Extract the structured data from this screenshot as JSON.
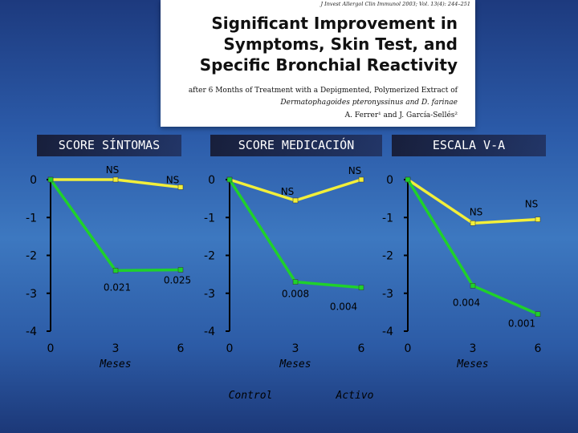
{
  "header": {
    "citation": "J Invest Allergol Clin Immunol 2003; Vol. 13(4): 244–251",
    "title_lines": [
      "Significant Improvement in",
      "Symptoms, Skin Test, and",
      "Specific Bronchial Reactivity"
    ],
    "subtitle_line1": "after 6 Months of Treatment with a Depigmented, Polymerized Extract of",
    "subtitle_line2": "Dermatophagoides pteronyssinus and D. farinae",
    "authors": "A. Ferrer¹ and J. García-Sellés²"
  },
  "colors": {
    "control": "#f2ef3a",
    "activo": "#1fd12b",
    "axis": "#000000"
  },
  "legend": {
    "control": "Control",
    "activo": "Activo"
  },
  "chart_data": [
    {
      "type": "line",
      "title": "SCORE SÍNTOMAS",
      "x": [
        0,
        3,
        6
      ],
      "x_tick_labels": [
        "0",
        "3",
        "6"
      ],
      "xlabel": "Meses",
      "y_ticks": [
        0,
        -1,
        -2,
        -3,
        -4
      ],
      "y_tick_labels": [
        "0",
        "-1",
        "-2",
        "-3",
        "-4"
      ],
      "ylim": [
        -4,
        0
      ],
      "series": [
        {
          "name": "Control",
          "values": [
            0,
            0,
            -0.2
          ],
          "point_labels": [
            "",
            "NS",
            "NS"
          ]
        },
        {
          "name": "Activo",
          "values": [
            0,
            -2.4,
            -2.38
          ],
          "point_labels": [
            "",
            "0.021",
            "0.025"
          ]
        }
      ]
    },
    {
      "type": "line",
      "title": "SCORE MEDICACIÓN",
      "x": [
        0,
        3,
        6
      ],
      "x_tick_labels": [
        "0",
        "3",
        "6"
      ],
      "xlabel": "Meses",
      "y_ticks": [
        0,
        -1,
        -2,
        -3,
        -4
      ],
      "y_tick_labels": [
        "0",
        "-1",
        "-2",
        "-3",
        "-4"
      ],
      "ylim": [
        -4,
        0
      ],
      "series": [
        {
          "name": "Control",
          "values": [
            0,
            -0.55,
            0
          ],
          "point_labels": [
            "",
            "NS",
            "NS"
          ]
        },
        {
          "name": "Activo",
          "values": [
            0,
            -2.7,
            -2.85
          ],
          "point_labels": [
            "",
            "0.008",
            "0.004"
          ]
        }
      ]
    },
    {
      "type": "line",
      "title": "ESCALA V-A",
      "x": [
        0,
        3,
        6
      ],
      "x_tick_labels": [
        "0",
        "3",
        "6"
      ],
      "xlabel": "Meses",
      "y_ticks": [
        0,
        -1,
        -2,
        -3,
        -4
      ],
      "y_tick_labels": [
        "0",
        "-1",
        "-2",
        "-3",
        "-4"
      ],
      "ylim": [
        -4,
        0
      ],
      "series": [
        {
          "name": "Control",
          "values": [
            0,
            -1.15,
            -1.05
          ],
          "point_labels": [
            "",
            "NS",
            "NS"
          ]
        },
        {
          "name": "Activo",
          "values": [
            0,
            -2.8,
            -3.55
          ],
          "point_labels": [
            "",
            "0.004",
            "0.001"
          ]
        }
      ]
    }
  ]
}
